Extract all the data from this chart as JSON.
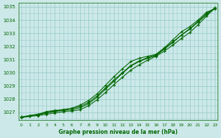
{
  "bg_color": "#cce8e8",
  "grid_color": "#99cccc",
  "line_color": "#006600",
  "text_color": "#006600",
  "xlabel": "Graphe pression niveau de la mer (hPa)",
  "ylim": [
    1026.4,
    1035.3
  ],
  "xlim": [
    -0.3,
    23.3
  ],
  "yticks": [
    1027,
    1028,
    1029,
    1030,
    1031,
    1032,
    1033,
    1034,
    1035
  ],
  "xticks": [
    0,
    1,
    2,
    3,
    4,
    5,
    6,
    7,
    8,
    9,
    10,
    11,
    12,
    13,
    14,
    15,
    16,
    17,
    18,
    19,
    20,
    21,
    22,
    23
  ],
  "lines": [
    [
      1026.6,
      1026.75,
      1026.85,
      1027.0,
      1027.1,
      1027.2,
      1027.3,
      1027.55,
      1027.9,
      1028.4,
      1029.05,
      1029.7,
      1030.3,
      1030.85,
      1031.1,
      1031.25,
      1031.4,
      1031.9,
      1032.5,
      1033.1,
      1033.5,
      1034.0,
      1034.6,
      1034.85
    ],
    [
      1026.6,
      1026.7,
      1026.8,
      1026.95,
      1027.05,
      1027.15,
      1027.2,
      1027.35,
      1027.65,
      1028.15,
      1028.75,
      1029.35,
      1029.95,
      1030.5,
      1030.85,
      1031.1,
      1031.3,
      1031.8,
      1032.3,
      1032.85,
      1033.3,
      1033.85,
      1034.4,
      1034.95
    ],
    [
      1026.6,
      1026.7,
      1026.75,
      1026.85,
      1026.95,
      1027.05,
      1027.1,
      1027.2,
      1027.5,
      1027.95,
      1028.5,
      1029.1,
      1029.65,
      1030.2,
      1030.6,
      1030.95,
      1031.25,
      1031.65,
      1032.1,
      1032.6,
      1033.05,
      1033.65,
      1034.3,
      1034.9
    ],
    [
      1026.65,
      1026.75,
      1026.85,
      1027.05,
      1027.15,
      1027.2,
      1027.3,
      1027.45,
      1027.75,
      1028.25,
      1028.85,
      1029.45,
      1030.0,
      1030.55,
      1030.9,
      1031.15,
      1031.35,
      1031.85,
      1032.35,
      1032.85,
      1033.35,
      1033.9,
      1034.5,
      1034.9
    ]
  ]
}
